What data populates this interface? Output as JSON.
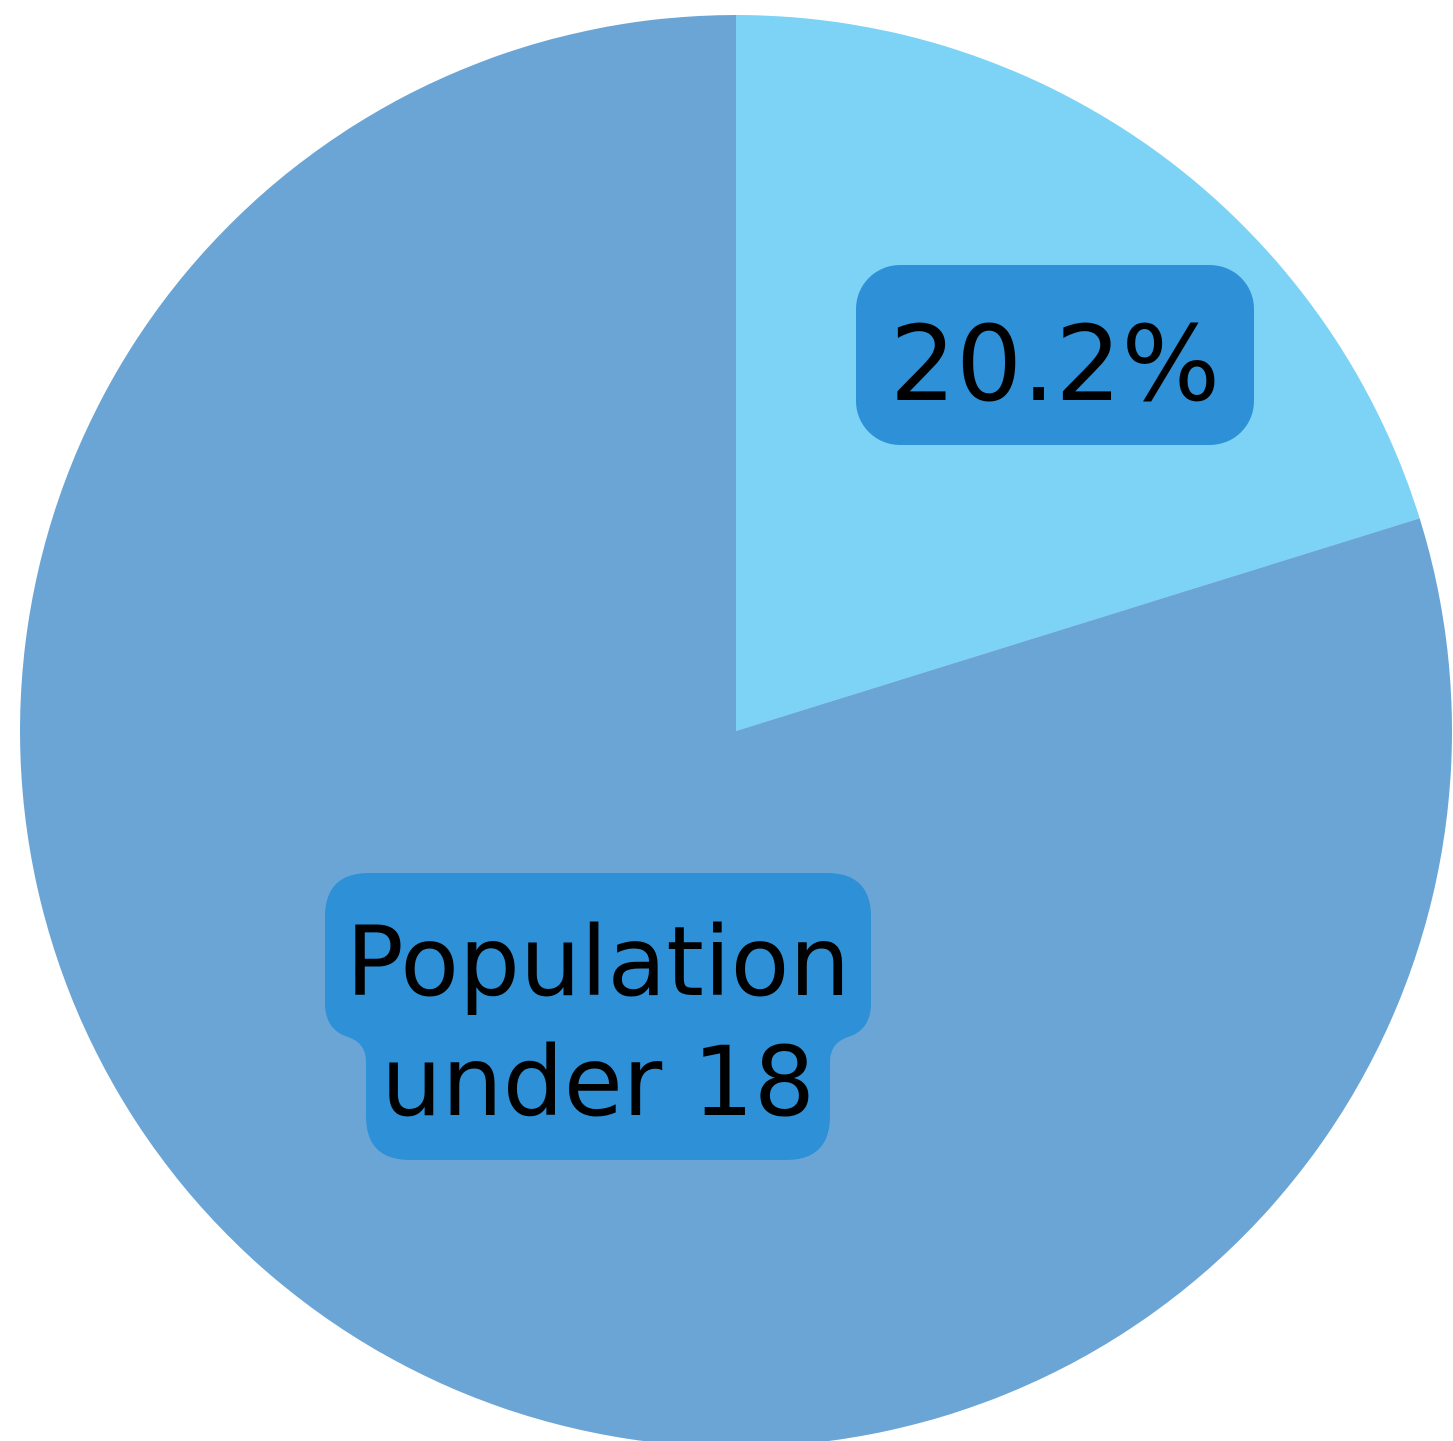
{
  "chart_data": {
    "type": "pie",
    "slices": [
      {
        "value": 20.2,
        "color": "#7dd3f5",
        "label": "20.2%"
      },
      {
        "value": 79.8,
        "color": "#6ba5d5",
        "label": [
          "Population",
          "under 18"
        ]
      }
    ],
    "label_box_color": "#2e90d6",
    "start_angle_deg": 0,
    "direction": "clockwise"
  }
}
